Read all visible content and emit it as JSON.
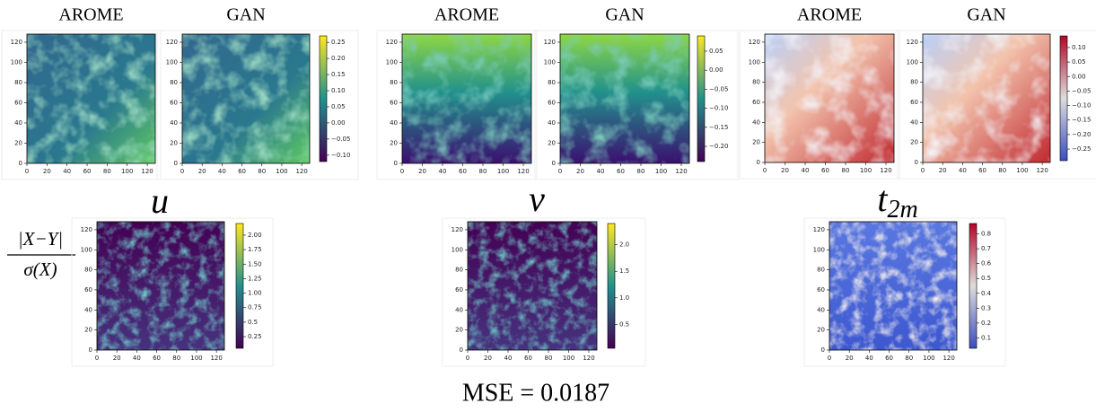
{
  "columns": [
    {
      "variable": {
        "base": "u"
      },
      "panels": [
        {
          "title": "AROME",
          "xlim": [
            0,
            128
          ],
          "ylim": [
            0,
            128
          ],
          "xticks": [
            0,
            20,
            40,
            60,
            80,
            100,
            120
          ],
          "yticks": [
            0,
            20,
            40,
            60,
            80,
            100,
            120
          ]
        },
        {
          "title": "GAN",
          "xlim": [
            0,
            128
          ],
          "ylim": [
            0,
            128
          ],
          "xticks": [
            0,
            20,
            40,
            60,
            80,
            100,
            120
          ],
          "yticks": [
            0,
            20,
            40,
            60,
            80,
            100,
            120
          ],
          "colorbar": {
            "lim": [
              -0.12,
              0.27
            ],
            "ticks": [
              {
                "value": -0.1,
                "label": "−0.10"
              },
              {
                "value": -0.05,
                "label": "−0.05"
              },
              {
                "value": 0,
                "label": "0.00"
              },
              {
                "value": 0.05,
                "label": "0.05"
              },
              {
                "value": 0.1,
                "label": "0.10"
              },
              {
                "value": 0.15,
                "label": "0.15"
              },
              {
                "value": 0.2,
                "label": "0.20"
              },
              {
                "value": 0.25,
                "label": "0.25"
              }
            ]
          }
        }
      ],
      "error": {
        "xlim": [
          0,
          128
        ],
        "ylim": [
          0,
          128
        ],
        "xticks": [
          0,
          20,
          40,
          60,
          80,
          100,
          120
        ],
        "yticks": [
          0,
          20,
          40,
          60,
          80,
          100,
          120
        ],
        "colorbar": {
          "lim": [
            0.05,
            2.2
          ],
          "ticks": [
            0.25,
            0.5,
            {
              "value": 0.75,
              "label": "0.75"
            },
            {
              "value": 1,
              "label": "1.00"
            },
            1.25,
            {
              "value": 1.5,
              "label": "1.50"
            },
            1.75,
            {
              "value": 2,
              "label": "2.00"
            }
          ]
        }
      }
    },
    {
      "variable": {
        "base": "v"
      },
      "panels": [
        {
          "title": "AROME",
          "xlim": [
            0,
            128
          ],
          "ylim": [
            0,
            128
          ],
          "xticks": [
            0,
            20,
            40,
            60,
            80,
            100,
            120
          ],
          "yticks": [
            0,
            20,
            40,
            60,
            80,
            100,
            120
          ]
        },
        {
          "title": "GAN",
          "xlim": [
            0,
            128
          ],
          "ylim": [
            0,
            128
          ],
          "xticks": [
            0,
            20,
            40,
            60,
            80,
            100,
            120
          ],
          "yticks": [
            0,
            20,
            40,
            60,
            80,
            100,
            120
          ],
          "colorbar": {
            "lim": [
              -0.24,
              0.09
            ],
            "ticks": [
              {
                "value": -0.2,
                "label": "−0.20"
              },
              {
                "value": -0.15,
                "label": "−0.15"
              },
              {
                "value": -0.1,
                "label": "−0.10"
              },
              {
                "value": -0.05,
                "label": "−0.05"
              },
              {
                "value": 0,
                "label": "0.00"
              },
              {
                "value": 0.05,
                "label": "0.05"
              }
            ]
          }
        }
      ],
      "error": {
        "xlim": [
          0,
          128
        ],
        "ylim": [
          0,
          128
        ],
        "xticks": [
          0,
          20,
          40,
          60,
          80,
          100,
          120
        ],
        "yticks": [
          0,
          20,
          40,
          60,
          80,
          100,
          120
        ],
        "colorbar": {
          "lim": [
            0.05,
            2.4
          ],
          "ticks": [
            0.5,
            {
              "value": 1,
              "label": "1.0"
            },
            1.5,
            {
              "value": 2,
              "label": "2.0"
            }
          ]
        }
      }
    },
    {
      "variable": {
        "base": "t",
        "sub": "2m"
      },
      "panels": [
        {
          "title": "AROME",
          "xlim": [
            0,
            128
          ],
          "ylim": [
            0,
            128
          ],
          "xticks": [
            0,
            20,
            40,
            60,
            80,
            100,
            120
          ],
          "yticks": [
            0,
            20,
            40,
            60,
            80,
            100,
            120
          ]
        },
        {
          "title": "GAN",
          "xlim": [
            0,
            128
          ],
          "ylim": [
            0,
            128
          ],
          "xticks": [
            0,
            20,
            40,
            60,
            80,
            100,
            120
          ],
          "yticks": [
            0,
            20,
            40,
            60,
            80,
            100,
            120
          ],
          "colorbar": {
            "lim": [
              -0.29,
              0.14
            ],
            "ticks": [
              {
                "value": -0.25,
                "label": "−0.25"
              },
              {
                "value": -0.2,
                "label": "−0.20"
              },
              {
                "value": -0.15,
                "label": "−0.15"
              },
              {
                "value": -0.1,
                "label": "−0.10"
              },
              {
                "value": -0.05,
                "label": "−0.05"
              },
              {
                "value": 0,
                "label": "0.00"
              },
              {
                "value": 0.05,
                "label": "0.05"
              },
              {
                "value": 0.1,
                "label": "0.10"
              }
            ]
          }
        }
      ],
      "error": {
        "xlim": [
          0,
          128
        ],
        "ylim": [
          0,
          128
        ],
        "xticks": [
          0,
          20,
          40,
          60,
          80,
          100,
          120
        ],
        "yticks": [
          0,
          20,
          40,
          60,
          80,
          100,
          120
        ],
        "colorbar": {
          "lim": [
            0.03,
            0.87
          ],
          "ticks": [
            0.1,
            0.2,
            0.3,
            0.4,
            0.5,
            0.6,
            0.7,
            0.8
          ]
        }
      }
    }
  ],
  "row_label": {
    "numerator": "|X−Y|",
    "denominator": "σ(X)"
  },
  "mse": "MSE = 0.0187"
}
